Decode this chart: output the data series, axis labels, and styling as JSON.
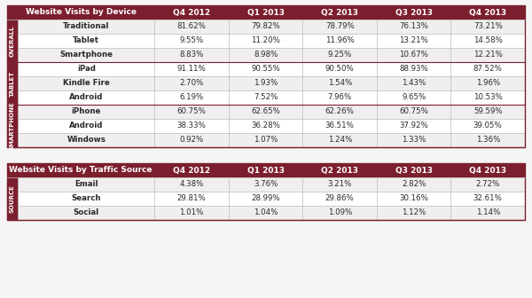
{
  "table1_cols": [
    "Website Visits by Device",
    "Q4 2012",
    "Q1 2013",
    "Q2 2013",
    "Q3 2013",
    "Q4 2013"
  ],
  "table1_sections": [
    {
      "label": "OVERALL",
      "rows": [
        [
          "Traditional",
          "81.62%",
          "79.82%",
          "78.79%",
          "76.13%",
          "73.21%"
        ],
        [
          "Tablet",
          "9.55%",
          "11.20%",
          "11.96%",
          "13.21%",
          "14.58%"
        ],
        [
          "Smartphone",
          "8.83%",
          "8.98%",
          "9.25%",
          "10.67%",
          "12.21%"
        ]
      ]
    },
    {
      "label": "TABLET",
      "rows": [
        [
          "iPad",
          "91.11%",
          "90.55%",
          "90.50%",
          "88.93%",
          "87.52%"
        ],
        [
          "Kindle Fire",
          "2.70%",
          "1.93%",
          "1.54%",
          "1.43%",
          "1.96%"
        ],
        [
          "Android",
          "6.19%",
          "7.52%",
          "7.96%",
          "9.65%",
          "10.53%"
        ]
      ]
    },
    {
      "label": "SMARTPHONE",
      "rows": [
        [
          "iPhone",
          "60.75%",
          "62.65%",
          "62.26%",
          "60.75%",
          "59.59%"
        ],
        [
          "Android",
          "38.33%",
          "36.28%",
          "36.51%",
          "37.92%",
          "39.05%"
        ],
        [
          "Windows",
          "0.92%",
          "1.07%",
          "1.24%",
          "1.33%",
          "1.36%"
        ]
      ]
    }
  ],
  "table2_cols": [
    "Website Visits by Traffic Source",
    "Q4 2012",
    "Q1 2013",
    "Q2 2013",
    "Q3 2013",
    "Q4 2013"
  ],
  "table2_sections": [
    {
      "label": "SOURCE",
      "rows": [
        [
          "Email",
          "4.38%",
          "3.76%",
          "3.21%",
          "2.82%",
          "2.72%"
        ],
        [
          "Search",
          "29.81%",
          "28.99%",
          "29.86%",
          "30.16%",
          "32.61%"
        ],
        [
          "Social",
          "1.01%",
          "1.04%",
          "1.09%",
          "1.12%",
          "1.14%"
        ]
      ]
    }
  ],
  "header_bg": "#7B1F2E",
  "header_text": "#FFFFFF",
  "section_label_bg": "#7B1F2E",
  "section_label_text": "#FFFFFF",
  "row_bg_even": "#F0EEEE",
  "row_bg_odd": "#FFFFFF",
  "row_text": "#2A2A2A",
  "border_color": "#BBBBBB",
  "outer_border": "#7B1F2E",
  "bg_color": "#F5F5F5",
  "font_size_header": 6.5,
  "font_size_row": 6.2,
  "font_size_section": 5.0
}
